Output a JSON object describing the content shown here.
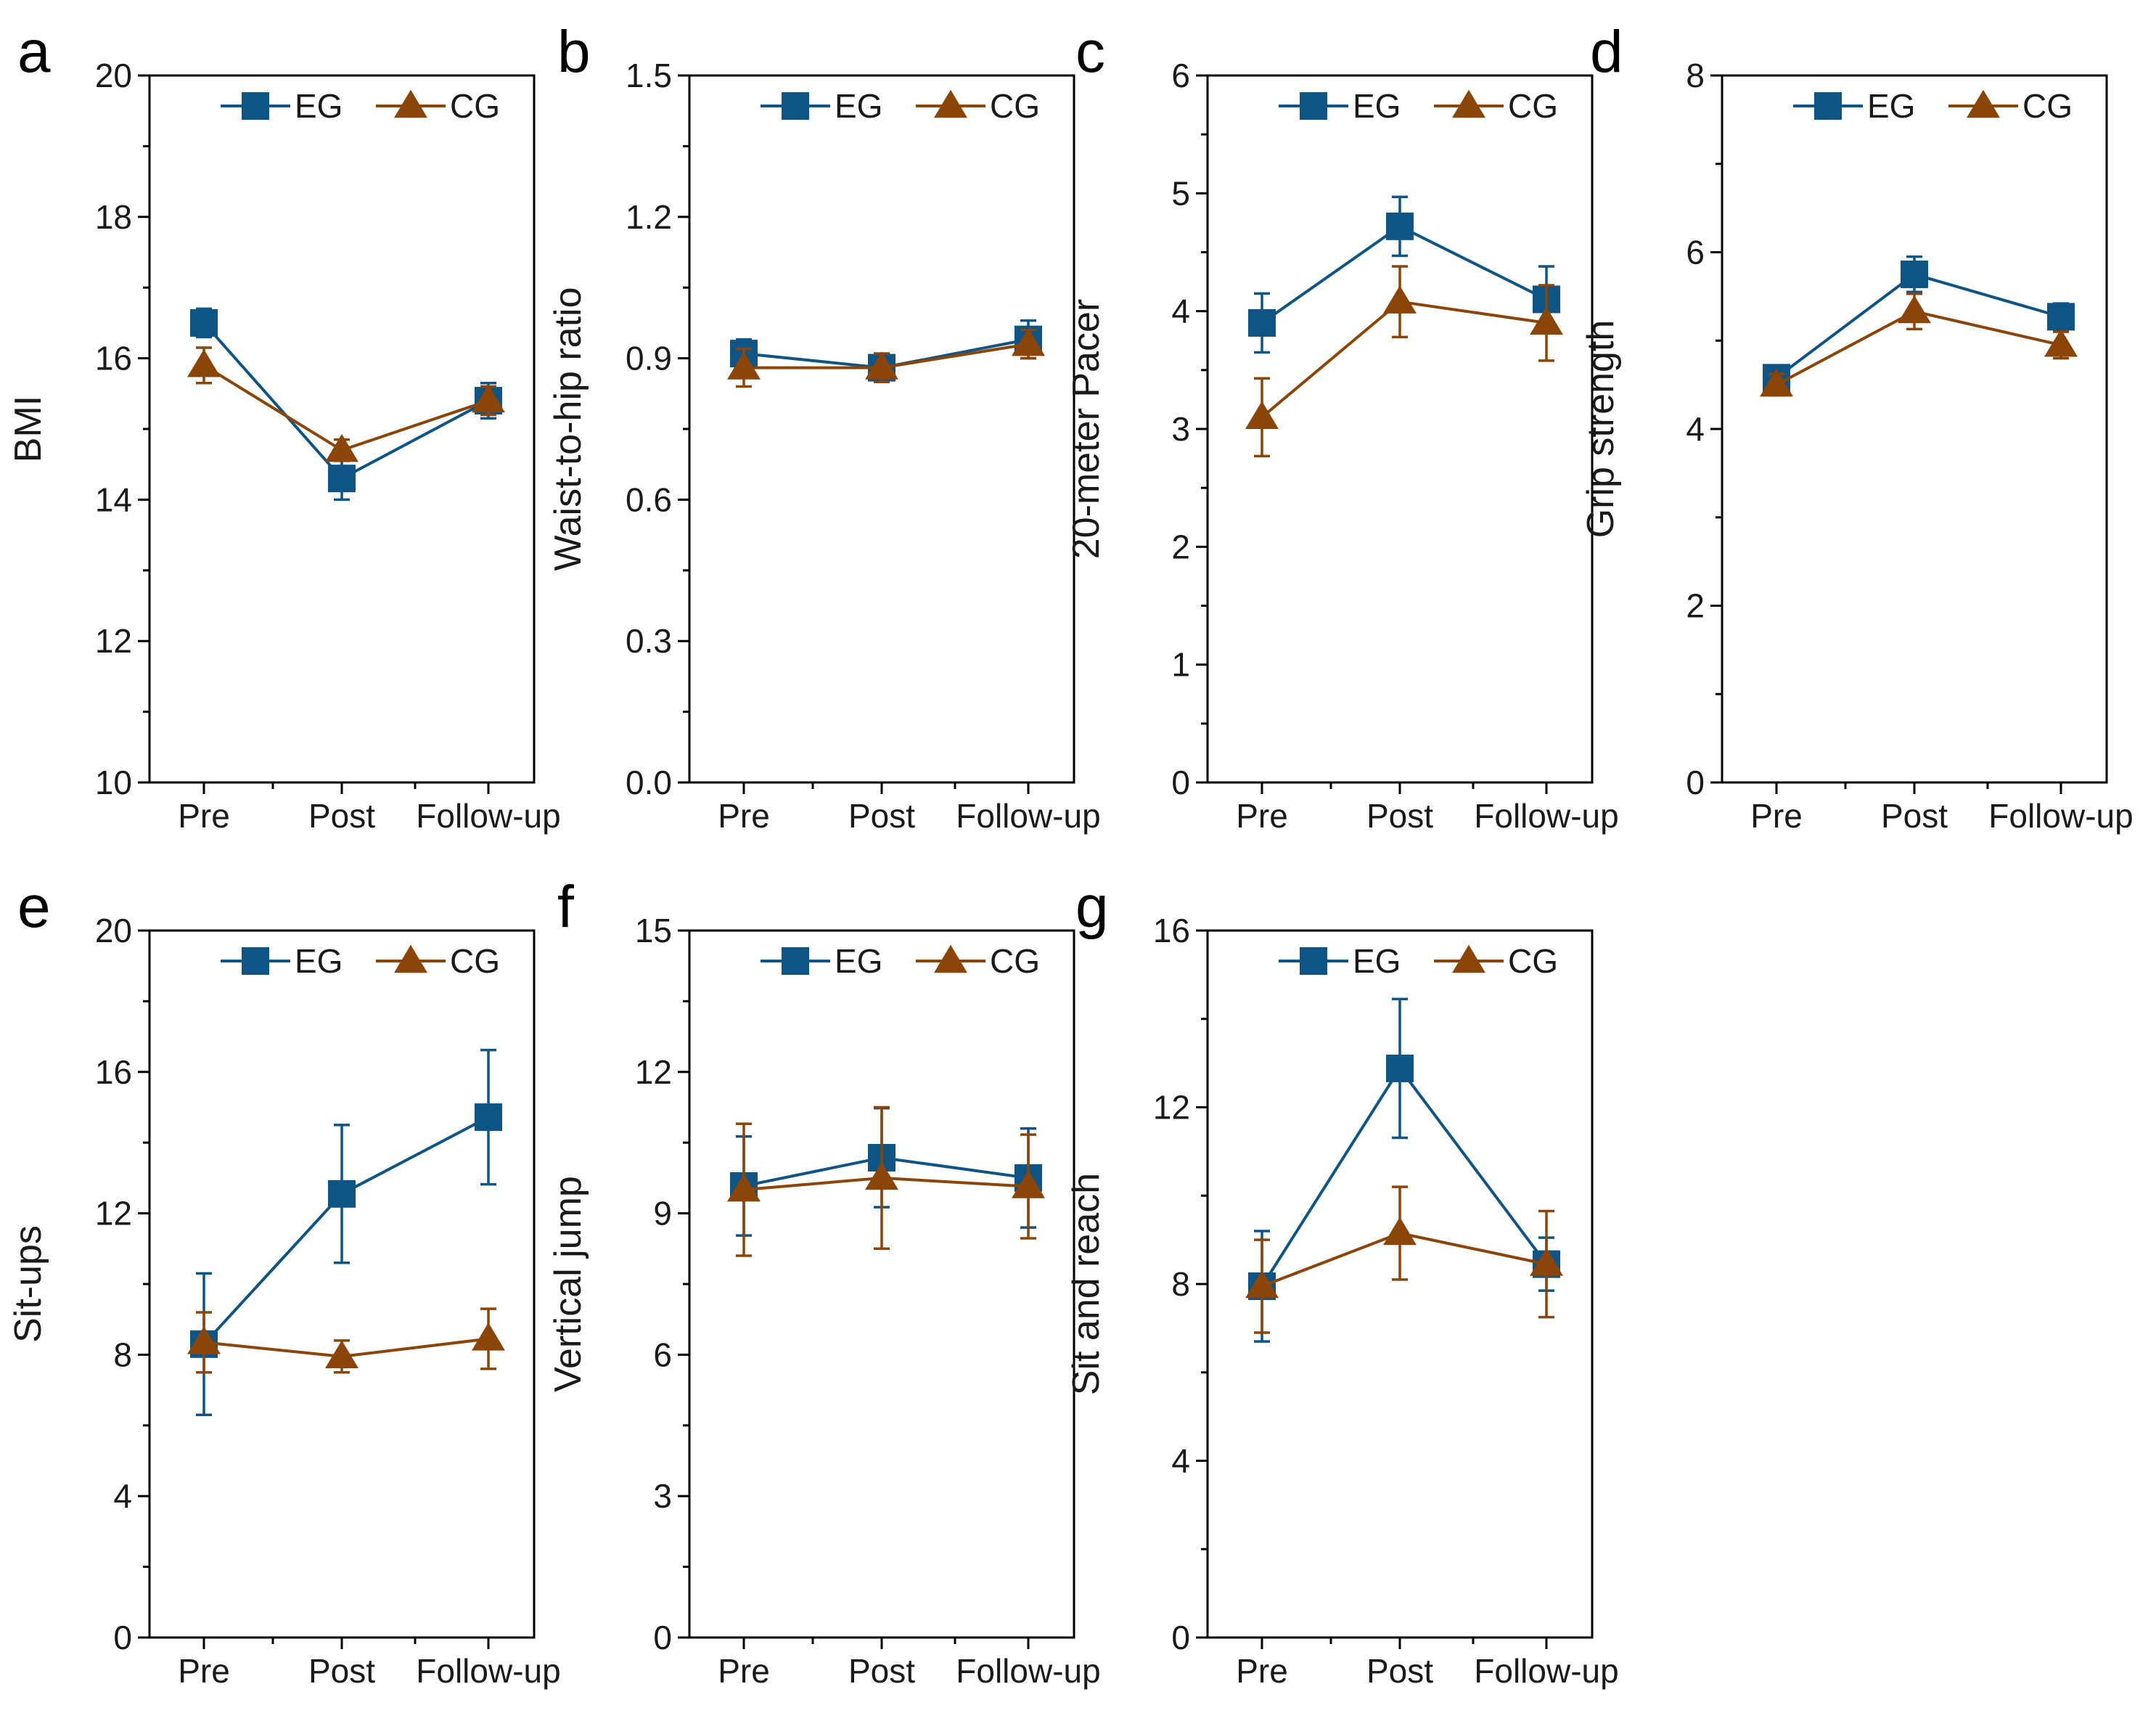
{
  "figure": {
    "colors": {
      "EG": "#0e5484",
      "CG": "#8c4508",
      "axis": "#000000",
      "text": "#1a1a1a"
    }
  },
  "chart_data": [
    {
      "panel": "a",
      "type": "line",
      "ylabel": "BMI",
      "xlabel": "",
      "categories": [
        "Pre",
        "Post",
        "Follow-up"
      ],
      "ylim": [
        10,
        20
      ],
      "yticks": [
        "10",
        "12",
        "14",
        "16",
        "18",
        "20"
      ],
      "legend_position": "top-right",
      "series": [
        {
          "name": "EG",
          "marker": "square",
          "values": [
            16.5,
            14.3,
            15.4
          ],
          "errors": [
            0.2,
            0.3,
            0.25
          ]
        },
        {
          "name": "CG",
          "marker": "triangle",
          "values": [
            15.9,
            14.7,
            15.4
          ],
          "errors": [
            0.25,
            0.15,
            0.2
          ]
        }
      ]
    },
    {
      "panel": "b",
      "type": "line",
      "ylabel": "Waist-to-hip ratio",
      "xlabel": "",
      "categories": [
        "Pre",
        "Post",
        "Follow-up"
      ],
      "ylim": [
        0,
        1.5
      ],
      "yticks": [
        "0.0",
        "0.3",
        "0.6",
        "0.9",
        "1.2",
        "1.5"
      ],
      "legend_position": "top-right",
      "series": [
        {
          "name": "EG",
          "marker": "square",
          "values": [
            0.91,
            0.88,
            0.94
          ],
          "errors": [
            0.03,
            0.03,
            0.04
          ]
        },
        {
          "name": "CG",
          "marker": "triangle",
          "values": [
            0.88,
            0.88,
            0.93
          ],
          "errors": [
            0.04,
            0.03,
            0.03
          ]
        }
      ]
    },
    {
      "panel": "c",
      "type": "line",
      "ylabel": "20-meter Pacer",
      "xlabel": "",
      "categories": [
        "Pre",
        "Post",
        "Follow-up"
      ],
      "ylim": [
        0,
        6
      ],
      "yticks": [
        "0",
        "1",
        "2",
        "3",
        "4",
        "5",
        "6"
      ],
      "legend_position": "top-right",
      "series": [
        {
          "name": "EG",
          "marker": "square",
          "values": [
            3.9,
            4.72,
            4.1
          ],
          "errors": [
            0.25,
            0.25,
            0.28
          ]
        },
        {
          "name": "CG",
          "marker": "triangle",
          "values": [
            3.1,
            4.08,
            3.9
          ],
          "errors": [
            0.33,
            0.3,
            0.32
          ]
        }
      ]
    },
    {
      "panel": "d",
      "type": "line",
      "ylabel": "Grip strength",
      "xlabel": "",
      "categories": [
        "Pre",
        "Post",
        "Follow-up"
      ],
      "ylim": [
        0,
        8
      ],
      "yticks": [
        "0",
        "2",
        "4",
        "6",
        "8"
      ],
      "legend_position": "top-right",
      "series": [
        {
          "name": "EG",
          "marker": "square",
          "values": [
            4.58,
            5.75,
            5.27
          ],
          "errors": [
            0.12,
            0.2,
            0.15
          ]
        },
        {
          "name": "CG",
          "marker": "triangle",
          "values": [
            4.5,
            5.33,
            4.95
          ],
          "errors": [
            0.12,
            0.2,
            0.15
          ]
        }
      ]
    },
    {
      "panel": "e",
      "type": "line",
      "ylabel": "Sit-ups",
      "xlabel": "",
      "categories": [
        "Pre",
        "Post",
        "Follow-up"
      ],
      "ylim": [
        0,
        20
      ],
      "yticks": [
        "0",
        "4",
        "8",
        "12",
        "16",
        "20"
      ],
      "legend_position": "top-right",
      "series": [
        {
          "name": "EG",
          "marker": "square",
          "values": [
            8.3,
            12.55,
            14.72
          ],
          "errors": [
            2.0,
            1.95,
            1.9
          ]
        },
        {
          "name": "CG",
          "marker": "triangle",
          "values": [
            8.35,
            7.95,
            8.45
          ],
          "errors": [
            0.85,
            0.45,
            0.85
          ]
        }
      ]
    },
    {
      "panel": "f",
      "type": "line",
      "ylabel": "Vertical jump",
      "xlabel": "",
      "categories": [
        "Pre",
        "Post",
        "Follow-up"
      ],
      "ylim": [
        0,
        15
      ],
      "yticks": [
        "0",
        "3",
        "6",
        "9",
        "12",
        "15"
      ],
      "legend_position": "top-right",
      "series": [
        {
          "name": "EG",
          "marker": "square",
          "values": [
            9.58,
            10.18,
            9.75
          ],
          "errors": [
            1.05,
            1.05,
            1.05
          ]
        },
        {
          "name": "CG",
          "marker": "triangle",
          "values": [
            9.5,
            9.75,
            9.57
          ],
          "errors": [
            1.4,
            1.5,
            1.1
          ]
        }
      ]
    },
    {
      "panel": "g",
      "type": "line",
      "ylabel": "Sit and reach",
      "xlabel": "",
      "categories": [
        "Pre",
        "Post",
        "Follow-up"
      ],
      "ylim": [
        0,
        16
      ],
      "yticks": [
        "0",
        "4",
        "8",
        "12",
        "16"
      ],
      "legend_position": "top-right",
      "series": [
        {
          "name": "EG",
          "marker": "square",
          "values": [
            7.95,
            12.88,
            8.45
          ],
          "errors": [
            1.25,
            1.57,
            0.6
          ]
        },
        {
          "name": "CG",
          "marker": "triangle",
          "values": [
            7.95,
            9.15,
            8.45
          ],
          "errors": [
            1.05,
            1.05,
            1.2
          ]
        }
      ]
    }
  ]
}
